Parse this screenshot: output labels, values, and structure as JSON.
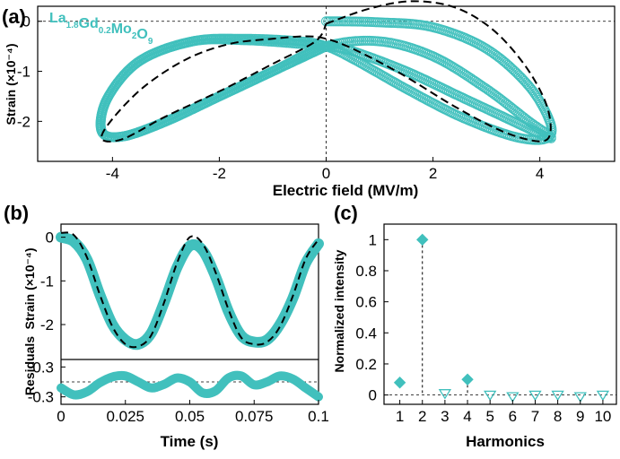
{
  "colors": {
    "data": "#41C0BD",
    "model": "#000000",
    "guide": "#000000"
  },
  "figure": {
    "panel_labels": [
      "(a)",
      "(b)",
      "(c)"
    ],
    "compound": {
      "parts": [
        {
          "text": "La",
          "sub": "1.8"
        },
        {
          "text": "Gd",
          "sub": "0.2"
        },
        {
          "text": "Mo",
          "sub": "2"
        },
        {
          "text": "O",
          "sub": "9"
        }
      ]
    }
  },
  "chart_data": [
    {
      "id": "a",
      "type": "scatter",
      "xlabel": "Electric field (MV/m)",
      "ylabel": "Strain (×10⁻⁴)",
      "xlim": [
        -5.4,
        5.4
      ],
      "ylim": [
        -2.8,
        0.3
      ],
      "xticks": [
        -4,
        -2,
        0,
        2,
        4
      ],
      "xtick_labels": [
        "-4",
        "-2",
        "0",
        "2",
        "4"
      ],
      "yticks": [
        0,
        -1,
        -2
      ],
      "ytick_labels": [
        "0",
        "-1",
        "-2"
      ],
      "grid": false,
      "marker": "open-circle",
      "guides": [
        {
          "orientation": "horizontal",
          "value": 0
        },
        {
          "orientation": "vertical",
          "value": 0
        }
      ],
      "series": [
        {
          "style": "markers",
          "x": [
            0.0,
            1.0,
            2.0,
            3.0,
            3.8,
            4.2,
            4.1,
            3.5,
            2.5,
            1.5,
            0.5,
            0.0,
            -0.5,
            -1.5,
            -2.5,
            -3.5,
            -4.1,
            -4.2,
            -3.8,
            -3.0,
            -2.0,
            -1.0,
            0.0,
            1.0,
            2.0,
            3.0,
            3.8,
            4.2,
            4.1,
            3.5,
            2.5,
            1.5,
            0.5,
            0.0,
            -0.5,
            -1.5,
            -2.5,
            -3.5,
            -4.1,
            -4.2,
            -3.8,
            -3.0,
            -2.0,
            -1.0,
            0.0
          ],
          "y": [
            0.0,
            -0.02,
            -0.12,
            -0.55,
            -1.3,
            -2.05,
            -2.35,
            -2.3,
            -1.9,
            -1.35,
            -0.75,
            -0.5,
            -0.4,
            -0.35,
            -0.4,
            -0.8,
            -1.55,
            -2.2,
            -2.3,
            -2.0,
            -1.5,
            -1.0,
            -0.5,
            -0.4,
            -0.7,
            -1.35,
            -2.0,
            -2.3,
            -2.3,
            -2.0,
            -1.5,
            -1.0,
            -0.6,
            -0.5,
            -0.45,
            -0.38,
            -0.4,
            -0.8,
            -1.55,
            -2.2,
            -2.3,
            -2.0,
            -1.5,
            -1.0,
            -0.5
          ]
        },
        {
          "style": "dashed",
          "x": [
            0.0,
            0.8,
            1.6,
            2.4,
            3.1,
            3.7,
            4.1,
            4.2,
            4.0,
            3.3,
            2.4,
            1.4,
            0.5,
            0.0,
            -0.4,
            -1.0,
            -1.8,
            -2.6,
            -3.4,
            -4.0,
            -4.2,
            -3.8,
            -3.0,
            -2.0,
            -1.0,
            -0.2,
            0.0
          ],
          "y": [
            -0.05,
            0.25,
            0.4,
            0.28,
            -0.15,
            -0.85,
            -1.6,
            -2.2,
            -2.4,
            -2.2,
            -1.7,
            -1.05,
            -0.55,
            -0.35,
            -0.3,
            -0.35,
            -0.45,
            -0.75,
            -1.3,
            -1.95,
            -2.35,
            -2.35,
            -1.9,
            -1.4,
            -0.85,
            -0.4,
            -0.05
          ]
        }
      ]
    },
    {
      "id": "b-top",
      "type": "line",
      "xlabel": "",
      "ylabel": "Strain (×10⁻⁴)",
      "xlim": [
        0,
        0.1
      ],
      "ylim": [
        -2.8,
        0.3
      ],
      "yticks": [
        0,
        -1,
        -2
      ],
      "ytick_labels": [
        "0",
        "-1",
        "-2"
      ],
      "grid": false,
      "series": [
        {
          "style": "thick",
          "x": [
            0.0,
            0.005,
            0.01,
            0.015,
            0.02,
            0.025,
            0.03,
            0.035,
            0.04,
            0.045,
            0.05,
            0.055,
            0.06,
            0.065,
            0.07,
            0.075,
            0.08,
            0.085,
            0.09,
            0.095,
            0.1
          ],
          "y": [
            0.0,
            -0.1,
            -0.5,
            -1.3,
            -2.0,
            -2.35,
            -2.45,
            -2.2,
            -1.5,
            -0.7,
            -0.2,
            -0.3,
            -0.9,
            -1.7,
            -2.25,
            -2.4,
            -2.35,
            -2.0,
            -1.4,
            -0.6,
            -0.15
          ]
        },
        {
          "style": "dashed",
          "x": [
            0.0,
            0.005,
            0.01,
            0.015,
            0.02,
            0.025,
            0.03,
            0.035,
            0.04,
            0.045,
            0.05,
            0.055,
            0.06,
            0.065,
            0.07,
            0.075,
            0.08,
            0.085,
            0.09,
            0.095,
            0.1
          ],
          "y": [
            0.1,
            0.05,
            -0.45,
            -1.3,
            -2.05,
            -2.45,
            -2.5,
            -2.25,
            -1.5,
            -0.6,
            0.0,
            -0.15,
            -0.8,
            -1.65,
            -2.3,
            -2.45,
            -2.4,
            -2.05,
            -1.35,
            -0.5,
            -0.05
          ]
        }
      ]
    },
    {
      "id": "b-bottom",
      "type": "line",
      "xlabel": "Time (s)",
      "ylabel": "Residuals",
      "xlim": [
        0,
        0.1
      ],
      "ylim": [
        -0.45,
        0.45
      ],
      "xticks": [
        0,
        0.025,
        0.05,
        0.075,
        0.1
      ],
      "xtick_labels": [
        "0",
        "0.025",
        "0.05",
        "0.075",
        "0.1"
      ],
      "yticks": [
        0.3,
        -0.3
      ],
      "ytick_labels": [
        "0.3",
        "-0.3"
      ],
      "grid": false,
      "guides": [
        {
          "orientation": "horizontal",
          "value": 0
        }
      ],
      "series": [
        {
          "style": "thick",
          "x": [
            0.0,
            0.005,
            0.01,
            0.015,
            0.02,
            0.025,
            0.03,
            0.035,
            0.04,
            0.045,
            0.05,
            0.055,
            0.06,
            0.065,
            0.07,
            0.075,
            0.08,
            0.085,
            0.09,
            0.095,
            0.1
          ],
          "y": [
            -0.12,
            -0.26,
            -0.2,
            -0.02,
            0.1,
            0.12,
            0.0,
            -0.12,
            -0.05,
            0.08,
            0.0,
            -0.22,
            -0.18,
            0.08,
            0.12,
            -0.06,
            0.0,
            0.12,
            0.06,
            -0.12,
            -0.3
          ]
        }
      ]
    },
    {
      "id": "c",
      "type": "scatter",
      "xlabel": "Harmonics",
      "ylabel": "Normalized intensity",
      "xlim": [
        0.3,
        10.6
      ],
      "ylim": [
        -0.06,
        1.1
      ],
      "xticks": [
        1,
        2,
        3,
        4,
        5,
        6,
        7,
        8,
        9,
        10
      ],
      "xtick_labels": [
        "1",
        "2",
        "3",
        "4",
        "5",
        "6",
        "7",
        "8",
        "9",
        "10"
      ],
      "yticks": [
        0,
        0.2,
        0.4,
        0.6,
        0.8,
        1
      ],
      "ytick_labels": [
        "0",
        "0.2",
        "0.4",
        "0.6",
        "0.8",
        "1"
      ],
      "grid": false,
      "guides": [
        {
          "orientation": "horizontal",
          "value": 0
        }
      ],
      "points": [
        {
          "x": 1,
          "y": 0.08,
          "marker": "filled-diamond"
        },
        {
          "x": 2,
          "y": 1.0,
          "marker": "filled-diamond",
          "stem": true
        },
        {
          "x": 3,
          "y": 0.01,
          "marker": "open-triangle"
        },
        {
          "x": 4,
          "y": 0.1,
          "marker": "filled-diamond",
          "stem": true
        },
        {
          "x": 5,
          "y": 0.0,
          "marker": "open-triangle"
        },
        {
          "x": 6,
          "y": -0.01,
          "marker": "open-triangle"
        },
        {
          "x": 7,
          "y": 0.0,
          "marker": "open-triangle"
        },
        {
          "x": 8,
          "y": 0.0,
          "marker": "open-triangle"
        },
        {
          "x": 9,
          "y": -0.01,
          "marker": "open-triangle"
        },
        {
          "x": 10,
          "y": 0.0,
          "marker": "open-triangle"
        }
      ]
    }
  ]
}
